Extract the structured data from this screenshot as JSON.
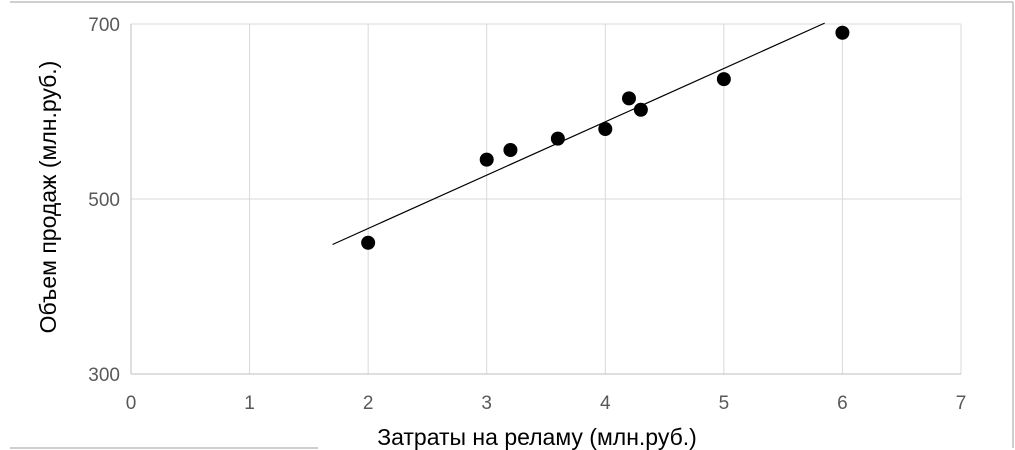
{
  "chart_data": {
    "type": "scatter",
    "title": "",
    "xlabel": "Затраты на реламу (млн.руб.)",
    "ylabel": "Объем продаж  (млн.руб.)",
    "xlim": [
      0,
      7
    ],
    "ylim": [
      300,
      700
    ],
    "x_ticks": [
      0,
      1,
      2,
      3,
      4,
      5,
      6,
      7
    ],
    "y_ticks": [
      300,
      500,
      700
    ],
    "x_tick_labels": [
      "0",
      "1",
      "2",
      "3",
      "4",
      "5",
      "6",
      "7"
    ],
    "y_tick_labels": [
      "300",
      "500",
      "700"
    ],
    "grid": true,
    "legend": "none",
    "point_color": "#000000",
    "series": [
      {
        "points": [
          {
            "x": 2,
            "y": 450
          },
          {
            "x": 3,
            "y": 545
          },
          {
            "x": 3.2,
            "y": 556
          },
          {
            "x": 3.6,
            "y": 569
          },
          {
            "x": 4,
            "y": 580
          },
          {
            "x": 4.2,
            "y": 615
          },
          {
            "x": 4.3,
            "y": 602
          },
          {
            "x": 5,
            "y": 637
          },
          {
            "x": 6,
            "y": 690
          }
        ]
      }
    ],
    "trendline": {
      "type": "linear",
      "x": [
        1.7,
        5.85
      ],
      "y": [
        448,
        701
      ]
    }
  }
}
